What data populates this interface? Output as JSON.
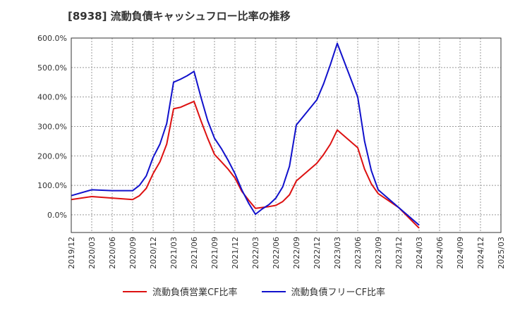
{
  "chart_data": {
    "type": "line",
    "title": "[8938]  流動負債キャッシュフロー比率の推移",
    "xlabel": "",
    "ylabel": "",
    "ylim": [
      -60,
      600
    ],
    "y_ticks": [
      0,
      100,
      200,
      300,
      400,
      500,
      600
    ],
    "y_tick_labels": [
      "0.0%",
      "100.0%",
      "200.0%",
      "300.0%",
      "400.0%",
      "500.0%",
      "600.0%"
    ],
    "x_tick_labels": [
      "2019/12",
      "2020/03",
      "2020/06",
      "2020/09",
      "2020/12",
      "2021/03",
      "2021/06",
      "2021/09",
      "2021/12",
      "2022/03",
      "2022/06",
      "2022/09",
      "2022/12",
      "2023/03",
      "2023/06",
      "2023/09",
      "2023/12",
      "2024/03",
      "2024/06",
      "2024/09",
      "2024/12",
      "2025/03"
    ],
    "grid": true,
    "legend_position": "bottom",
    "series": [
      {
        "name": "流動負債営業CF比率",
        "color": "#dd1111",
        "points": [
          [
            "2019/12",
            52
          ],
          [
            "2020/03",
            62
          ],
          [
            "2020/06",
            57
          ],
          [
            "2020/09",
            52
          ],
          [
            "2020/10",
            65
          ],
          [
            "2020/11",
            90
          ],
          [
            "2020/12",
            140
          ],
          [
            "2021/01",
            180
          ],
          [
            "2021/02",
            240
          ],
          [
            "2021/03",
            360
          ],
          [
            "2021/04",
            365
          ],
          [
            "2021/05",
            375
          ],
          [
            "2021/06",
            385
          ],
          [
            "2021/07",
            320
          ],
          [
            "2021/08",
            260
          ],
          [
            "2021/09",
            205
          ],
          [
            "2021/10",
            180
          ],
          [
            "2021/11",
            155
          ],
          [
            "2021/12",
            125
          ],
          [
            "2022/01",
            80
          ],
          [
            "2022/02",
            50
          ],
          [
            "2022/03",
            22
          ],
          [
            "2022/04",
            25
          ],
          [
            "2022/05",
            28
          ],
          [
            "2022/06",
            32
          ],
          [
            "2022/07",
            45
          ],
          [
            "2022/08",
            68
          ],
          [
            "2022/09",
            115
          ],
          [
            "2022/12",
            175
          ],
          [
            "2023/01",
            205
          ],
          [
            "2023/02",
            240
          ],
          [
            "2023/03",
            288
          ],
          [
            "2023/06",
            228
          ],
          [
            "2023/07",
            155
          ],
          [
            "2023/08",
            105
          ],
          [
            "2023/09",
            72
          ],
          [
            "2023/12",
            25
          ],
          [
            "2024/03",
            -45
          ]
        ]
      },
      {
        "name": "流動負債フリーCF比率",
        "color": "#1111cc",
        "points": [
          [
            "2019/12",
            65
          ],
          [
            "2020/03",
            85
          ],
          [
            "2020/06",
            82
          ],
          [
            "2020/09",
            82
          ],
          [
            "2020/10",
            100
          ],
          [
            "2020/11",
            132
          ],
          [
            "2020/12",
            195
          ],
          [
            "2021/01",
            240
          ],
          [
            "2021/02",
            310
          ],
          [
            "2021/03",
            450
          ],
          [
            "2021/04",
            460
          ],
          [
            "2021/05",
            472
          ],
          [
            "2021/06",
            487
          ],
          [
            "2021/07",
            400
          ],
          [
            "2021/08",
            320
          ],
          [
            "2021/09",
            260
          ],
          [
            "2021/10",
            225
          ],
          [
            "2021/11",
            185
          ],
          [
            "2021/12",
            140
          ],
          [
            "2022/01",
            85
          ],
          [
            "2022/02",
            40
          ],
          [
            "2022/03",
            2
          ],
          [
            "2022/04",
            20
          ],
          [
            "2022/05",
            35
          ],
          [
            "2022/06",
            57
          ],
          [
            "2022/07",
            95
          ],
          [
            "2022/08",
            165
          ],
          [
            "2022/09",
            305
          ],
          [
            "2022/12",
            390
          ],
          [
            "2023/01",
            445
          ],
          [
            "2023/02",
            510
          ],
          [
            "2023/03",
            582
          ],
          [
            "2023/06",
            400
          ],
          [
            "2023/07",
            250
          ],
          [
            "2023/08",
            150
          ],
          [
            "2023/09",
            85
          ],
          [
            "2023/12",
            25
          ],
          [
            "2024/03",
            -35
          ]
        ]
      }
    ]
  }
}
